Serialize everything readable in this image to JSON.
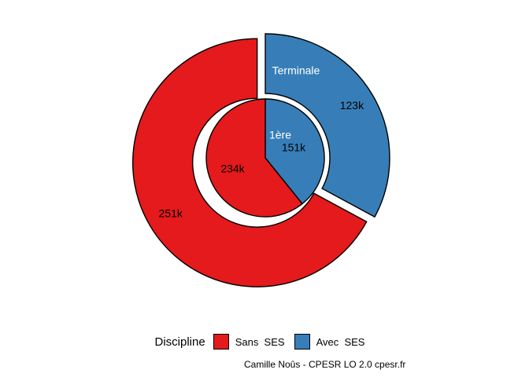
{
  "chart_data": {
    "type": "pie",
    "subtype": "nested-donut",
    "legend": {
      "title": "Discipline",
      "placement": "bottom",
      "entries": [
        {
          "label": "Sans  SES",
          "color": "#e41a1c"
        },
        {
          "label": "Avec  SES",
          "color": "#377eb8"
        }
      ]
    },
    "rings": [
      {
        "name": "1ère",
        "level": "inner",
        "slices": [
          {
            "category": "Avec  SES",
            "value": 151,
            "label": "151k",
            "color": "#377eb8"
          },
          {
            "category": "Sans  SES",
            "value": 234,
            "label": "234k",
            "color": "#e41a1c"
          }
        ]
      },
      {
        "name": "Terminale",
        "level": "outer",
        "slices": [
          {
            "category": "Avec  SES",
            "value": 123,
            "label": "123k",
            "color": "#377eb8"
          },
          {
            "category": "Sans  SES",
            "value": 251,
            "label": "251k",
            "color": "#e41a1c"
          }
        ]
      }
    ],
    "units": "k"
  },
  "caption": "Camille Noûs - CPESR LO 2.0 cpesr.fr"
}
